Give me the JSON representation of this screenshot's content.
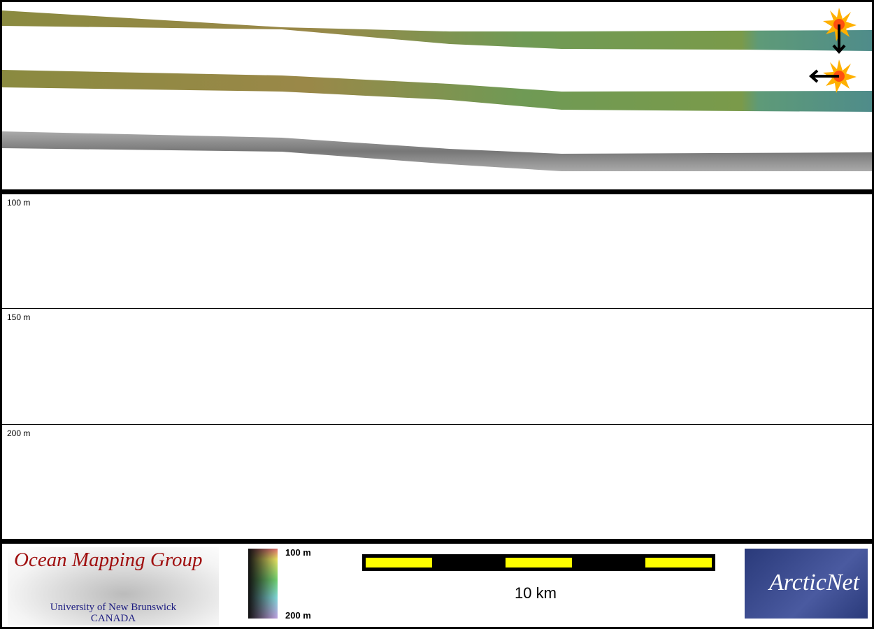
{
  "depth_labels": [
    "100 m",
    "150 m",
    "200 m"
  ],
  "legend": {
    "colorbar_top": "100 m",
    "colorbar_bottom": "200 m",
    "scale_label": "10 km"
  },
  "logos": {
    "omg_title": "Ocean Mapping Group",
    "omg_sub1": "University of New Brunswick",
    "omg_sub2": "CANADA",
    "arcticnet": "ArcticNet"
  },
  "icons": [
    "sun-illumination-icon",
    "arrow-down-icon",
    "arrow-left-icon"
  ]
}
